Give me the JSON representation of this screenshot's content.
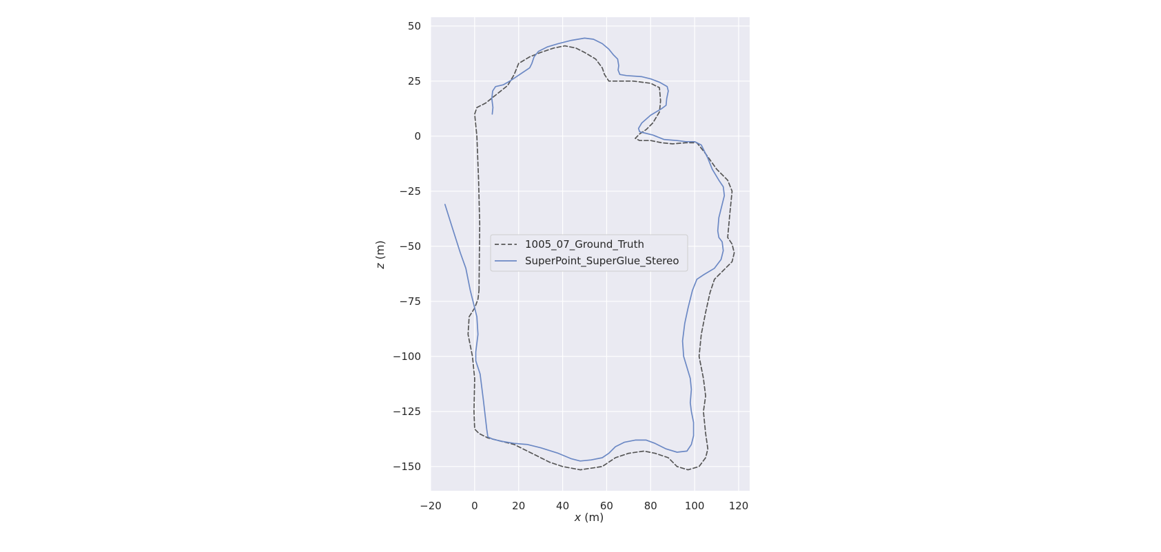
{
  "chart_data": {
    "type": "line",
    "title": "",
    "xlabel": "x (m)",
    "ylabel": "z (m)",
    "xlabel_var": "x",
    "xlabel_unit": " (m)",
    "ylabel_var": "z",
    "ylabel_unit": " (m)",
    "xlim": [
      -20,
      125
    ],
    "ylim": [
      -161,
      54
    ],
    "xticks": [
      -20,
      0,
      20,
      40,
      60,
      80,
      100,
      120
    ],
    "yticks": [
      50,
      25,
      0,
      -25,
      -50,
      -75,
      -100,
      -125,
      -150
    ],
    "xtick_labels": [
      "−20",
      "0",
      "20",
      "40",
      "60",
      "80",
      "100",
      "120"
    ],
    "ytick_labels": [
      "50",
      "25",
      "0",
      "−25",
      "−50",
      "−75",
      "−100",
      "−125",
      "−150"
    ],
    "grid": true,
    "legend_position": "center",
    "background_color": "#eaeaf2",
    "grid_color": "#ffffff",
    "series": [
      {
        "name": "1005_07_Ground_Truth",
        "color": "#555555",
        "style": "dashed",
        "points": [
          [
            2,
            -70
          ],
          [
            2.3,
            -40
          ],
          [
            1.8,
            -20
          ],
          [
            1,
            0
          ],
          [
            0,
            10
          ],
          [
            1,
            13
          ],
          [
            5,
            15
          ],
          [
            10,
            19
          ],
          [
            15,
            23
          ],
          [
            18,
            28
          ],
          [
            20,
            33
          ],
          [
            25,
            36
          ],
          [
            30,
            38
          ],
          [
            36,
            40
          ],
          [
            41,
            41
          ],
          [
            46,
            40
          ],
          [
            50,
            38
          ],
          [
            55,
            35
          ],
          [
            58,
            31
          ],
          [
            59,
            28
          ],
          [
            61,
            25
          ],
          [
            65,
            25
          ],
          [
            72,
            25
          ],
          [
            80,
            24
          ],
          [
            84,
            22
          ],
          [
            84.5,
            16
          ],
          [
            84,
            11
          ],
          [
            81,
            6
          ],
          [
            78,
            3
          ],
          [
            75,
            1
          ],
          [
            73,
            -1
          ],
          [
            75,
            -2
          ],
          [
            80,
            -2
          ],
          [
            85,
            -3
          ],
          [
            90,
            -3.5
          ],
          [
            96,
            -3
          ],
          [
            101,
            -3
          ],
          [
            105,
            -8
          ],
          [
            110,
            -15
          ],
          [
            115,
            -20
          ],
          [
            117,
            -25
          ],
          [
            116,
            -35
          ],
          [
            115,
            -46
          ],
          [
            117,
            -49
          ],
          [
            118,
            -53
          ],
          [
            117,
            -57
          ],
          [
            113,
            -61
          ],
          [
            109,
            -65
          ],
          [
            107,
            -71
          ],
          [
            105,
            -80
          ],
          [
            103,
            -90
          ],
          [
            102,
            -100
          ],
          [
            104,
            -110
          ],
          [
            105,
            -118
          ],
          [
            104,
            -125
          ],
          [
            105,
            -135
          ],
          [
            106,
            -142
          ],
          [
            105,
            -146
          ],
          [
            102,
            -150
          ],
          [
            97,
            -151.5
          ],
          [
            92,
            -150
          ],
          [
            88,
            -146
          ],
          [
            82,
            -144
          ],
          [
            77,
            -143
          ],
          [
            70,
            -144
          ],
          [
            64,
            -146
          ],
          [
            58,
            -150
          ],
          [
            48,
            -151.5
          ],
          [
            40,
            -150
          ],
          [
            34,
            -148
          ],
          [
            28,
            -145
          ],
          [
            22,
            -142
          ],
          [
            18,
            -140
          ],
          [
            12,
            -138.5
          ],
          [
            6,
            -137
          ],
          [
            2,
            -135
          ],
          [
            0,
            -133
          ],
          [
            -0.3,
            -125
          ],
          [
            0,
            -110
          ],
          [
            -1,
            -100
          ],
          [
            -3,
            -90
          ],
          [
            -2.5,
            -82
          ],
          [
            0,
            -78
          ],
          [
            1.5,
            -74
          ],
          [
            2,
            -70
          ]
        ]
      },
      {
        "name": "SuperPoint_SuperGlue_Stereo",
        "color": "#6b88c4",
        "style": "solid",
        "points": [
          [
            8,
            10
          ],
          [
            8.3,
            13
          ],
          [
            7.8,
            17
          ],
          [
            8.2,
            20.5
          ],
          [
            9.5,
            22.5
          ],
          [
            13,
            23.3
          ],
          [
            16,
            25
          ],
          [
            19,
            27
          ],
          [
            22,
            29
          ],
          [
            25,
            31
          ],
          [
            26,
            33
          ],
          [
            27,
            36
          ],
          [
            29,
            38.5
          ],
          [
            33,
            40.5
          ],
          [
            38,
            42
          ],
          [
            44,
            43.5
          ],
          [
            50,
            44.5
          ],
          [
            54,
            44
          ],
          [
            58,
            42
          ],
          [
            61,
            39.5
          ],
          [
            63,
            37
          ],
          [
            65,
            35
          ],
          [
            65.5,
            32
          ],
          [
            65.2,
            30
          ],
          [
            66,
            28
          ],
          [
            69,
            27.5
          ],
          [
            76,
            27
          ],
          [
            80,
            26
          ],
          [
            84,
            24.5
          ],
          [
            87.5,
            22.5
          ],
          [
            88,
            20.5
          ],
          [
            87.3,
            17
          ],
          [
            87,
            14
          ],
          [
            85,
            12.5
          ],
          [
            80,
            9.5
          ],
          [
            76,
            6
          ],
          [
            74.5,
            3.5
          ],
          [
            75,
            2
          ],
          [
            77,
            1.5
          ],
          [
            81,
            0.5
          ],
          [
            86,
            -1.5
          ],
          [
            92,
            -2
          ],
          [
            96,
            -2.5
          ],
          [
            100,
            -2.5
          ],
          [
            103,
            -4
          ],
          [
            106,
            -10
          ],
          [
            108,
            -15
          ],
          [
            111,
            -20
          ],
          [
            113,
            -23
          ],
          [
            113.5,
            -27
          ],
          [
            112,
            -33
          ],
          [
            111,
            -37
          ],
          [
            110.5,
            -43
          ],
          [
            111,
            -46
          ],
          [
            112.5,
            -48
          ],
          [
            113,
            -52
          ],
          [
            112,
            -56
          ],
          [
            109,
            -60
          ],
          [
            104,
            -63
          ],
          [
            101,
            -65
          ],
          [
            99,
            -70
          ],
          [
            97,
            -78
          ],
          [
            95.5,
            -85
          ],
          [
            94.5,
            -93
          ],
          [
            95,
            -100
          ],
          [
            96.5,
            -105
          ],
          [
            98,
            -110
          ],
          [
            98.5,
            -115
          ],
          [
            98,
            -121
          ],
          [
            98.5,
            -125
          ],
          [
            99.5,
            -130
          ],
          [
            99.5,
            -136
          ],
          [
            98.5,
            -140
          ],
          [
            96.5,
            -143
          ],
          [
            92,
            -143.5
          ],
          [
            87,
            -142
          ],
          [
            82,
            -139.5
          ],
          [
            78,
            -138
          ],
          [
            73,
            -138
          ],
          [
            68,
            -139
          ],
          [
            64,
            -141
          ],
          [
            61,
            -144
          ],
          [
            58,
            -146
          ],
          [
            53,
            -147
          ],
          [
            48,
            -147.5
          ],
          [
            44,
            -146.5
          ],
          [
            38,
            -144
          ],
          [
            30,
            -141.5
          ],
          [
            24,
            -140
          ],
          [
            18,
            -139.5
          ],
          [
            12,
            -138.5
          ],
          [
            8,
            -137.5
          ],
          [
            6,
            -136.5
          ],
          [
            5.5,
            -133
          ],
          [
            4,
            -120
          ],
          [
            3,
            -112
          ],
          [
            2.5,
            -108
          ],
          [
            0.5,
            -102
          ],
          [
            0.5,
            -98
          ],
          [
            1.5,
            -90
          ],
          [
            1,
            -82
          ],
          [
            0,
            -78
          ],
          [
            -2,
            -70
          ],
          [
            -4,
            -60
          ],
          [
            -6.5,
            -53
          ],
          [
            -10,
            -42
          ],
          [
            -13.5,
            -31
          ]
        ]
      }
    ]
  }
}
